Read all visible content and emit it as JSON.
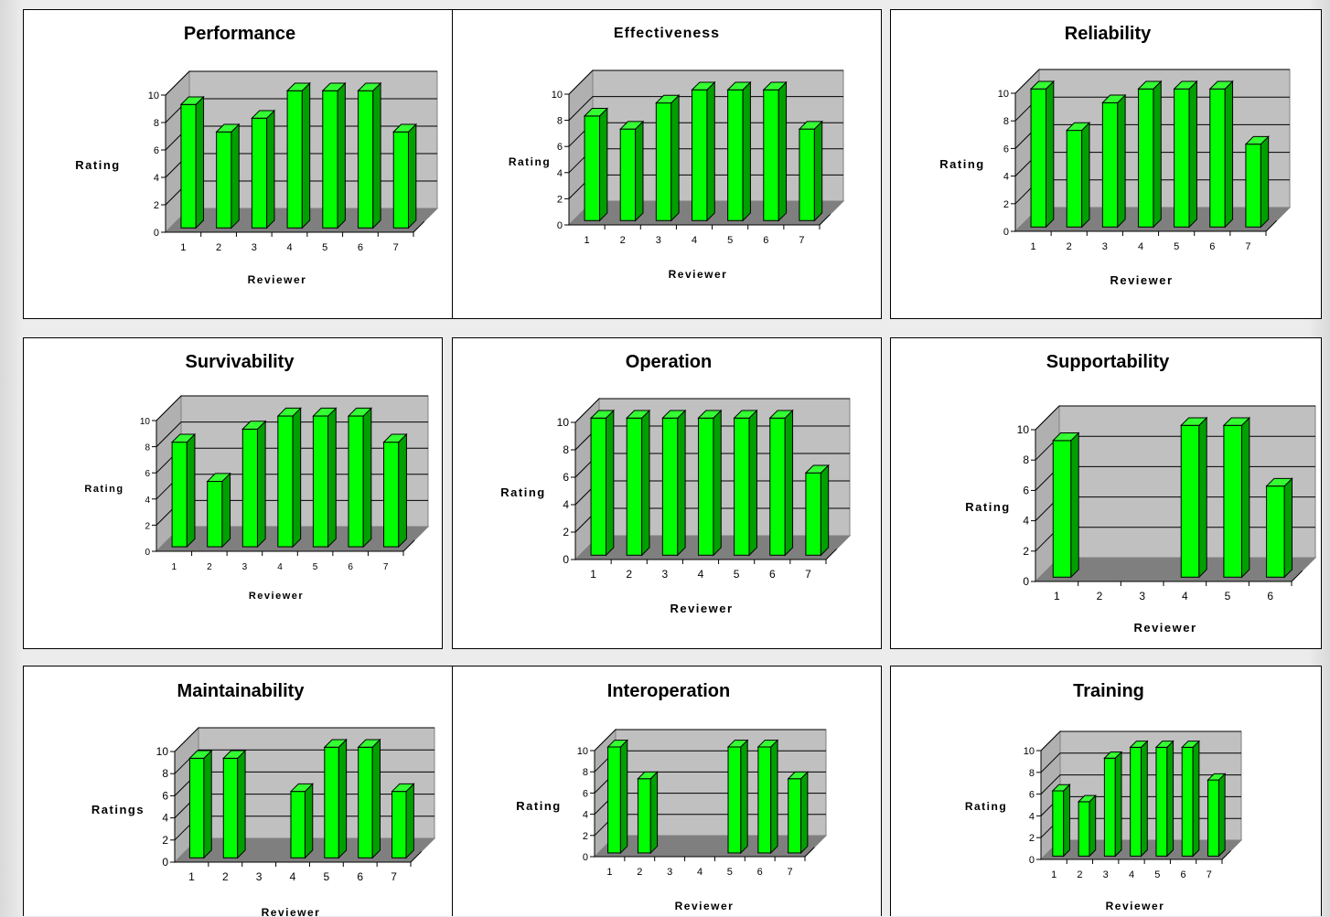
{
  "colors": {
    "bar_front": "#00ff00",
    "bar_side": "#00a000",
    "bar_top": "#33ff33",
    "back_wall": "#c0c0c0",
    "side_wall": "#b0b0b0",
    "floor": "#7f7f7f",
    "grid": "#000000"
  },
  "chart_data": [
    {
      "type": "bar",
      "title": "Performance",
      "xlabel": "Reviewer",
      "ylabel": "Rating",
      "categories": [
        "1",
        "2",
        "3",
        "4",
        "5",
        "6",
        "7"
      ],
      "values": [
        9,
        7,
        8,
        10,
        10,
        10,
        7
      ],
      "ylim": [
        0,
        10
      ],
      "yticks": [
        "0",
        "2",
        "4",
        "6",
        "8",
        "10"
      ],
      "grid": true
    },
    {
      "type": "bar",
      "title": "Effectiveness",
      "xlabel": "Reviewer",
      "ylabel": "Rating",
      "categories": [
        "1",
        "2",
        "3",
        "4",
        "5",
        "6",
        "7"
      ],
      "values": [
        8,
        7,
        9,
        10,
        10,
        10,
        7
      ],
      "ylim": [
        0,
        10
      ],
      "yticks": [
        "0",
        "2",
        "4",
        "6",
        "8",
        "10"
      ],
      "grid": true
    },
    {
      "type": "bar",
      "title": "Reliability",
      "xlabel": "Reviewer",
      "ylabel": "Rating",
      "categories": [
        "1",
        "2",
        "3",
        "4",
        "5",
        "6",
        "7"
      ],
      "values": [
        10,
        7,
        9,
        10,
        10,
        10,
        6
      ],
      "ylim": [
        0,
        10
      ],
      "yticks": [
        "0",
        "2",
        "4",
        "6",
        "8",
        "10"
      ],
      "grid": true
    },
    {
      "type": "bar",
      "title": "Survivability",
      "xlabel": "Reviewer",
      "ylabel": "Rating",
      "categories": [
        "1",
        "2",
        "3",
        "4",
        "5",
        "6",
        "7"
      ],
      "values": [
        8,
        5,
        9,
        10,
        10,
        10,
        8
      ],
      "ylim": [
        0,
        10
      ],
      "yticks": [
        "0",
        "2",
        "4",
        "6",
        "8",
        "10"
      ],
      "grid": true
    },
    {
      "type": "bar",
      "title": "Operation",
      "xlabel": "Reviewer",
      "ylabel": "Rating",
      "categories": [
        "1",
        "2",
        "3",
        "4",
        "5",
        "6",
        "7"
      ],
      "values": [
        10,
        10,
        10,
        10,
        10,
        10,
        6
      ],
      "ylim": [
        0,
        10
      ],
      "yticks": [
        "0",
        "2",
        "4",
        "6",
        "8",
        "10"
      ],
      "grid": true
    },
    {
      "type": "bar",
      "title": "Supportability",
      "xlabel": "Reviewer",
      "ylabel": "Rating",
      "categories": [
        "1",
        "2",
        "3",
        "4",
        "5",
        "6"
      ],
      "values": [
        9,
        null,
        null,
        10,
        10,
        6
      ],
      "ylim": [
        0,
        10
      ],
      "yticks": [
        "0",
        "2",
        "4",
        "6",
        "8",
        "10"
      ],
      "grid": true
    },
    {
      "type": "bar",
      "title": "Maintainability",
      "xlabel": "Reviewer",
      "ylabel": "Ratings",
      "categories": [
        "1",
        "2",
        "3",
        "4",
        "5",
        "6",
        "7"
      ],
      "values": [
        9,
        9,
        null,
        6,
        10,
        10,
        6
      ],
      "ylim": [
        0,
        10
      ],
      "yticks": [
        "0",
        "2",
        "4",
        "6",
        "8",
        "10"
      ],
      "grid": true
    },
    {
      "type": "bar",
      "title": "Interoperation",
      "xlabel": "Reviewer",
      "ylabel": "Rating",
      "categories": [
        "1",
        "2",
        "3",
        "4",
        "5",
        "6",
        "7"
      ],
      "values": [
        10,
        7,
        null,
        null,
        10,
        10,
        7
      ],
      "ylim": [
        0,
        10
      ],
      "yticks": [
        "0",
        "2",
        "4",
        "6",
        "8",
        "10"
      ],
      "grid": true
    },
    {
      "type": "bar",
      "title": "Training",
      "xlabel": "Reviewer",
      "ylabel": "Rating",
      "categories": [
        "1",
        "2",
        "3",
        "4",
        "5",
        "6",
        "7"
      ],
      "values": [
        6,
        5,
        9,
        10,
        10,
        10,
        7
      ],
      "ylim": [
        0,
        10
      ],
      "yticks": [
        "0",
        "2",
        "4",
        "6",
        "8",
        "10"
      ],
      "grid": true
    }
  ]
}
